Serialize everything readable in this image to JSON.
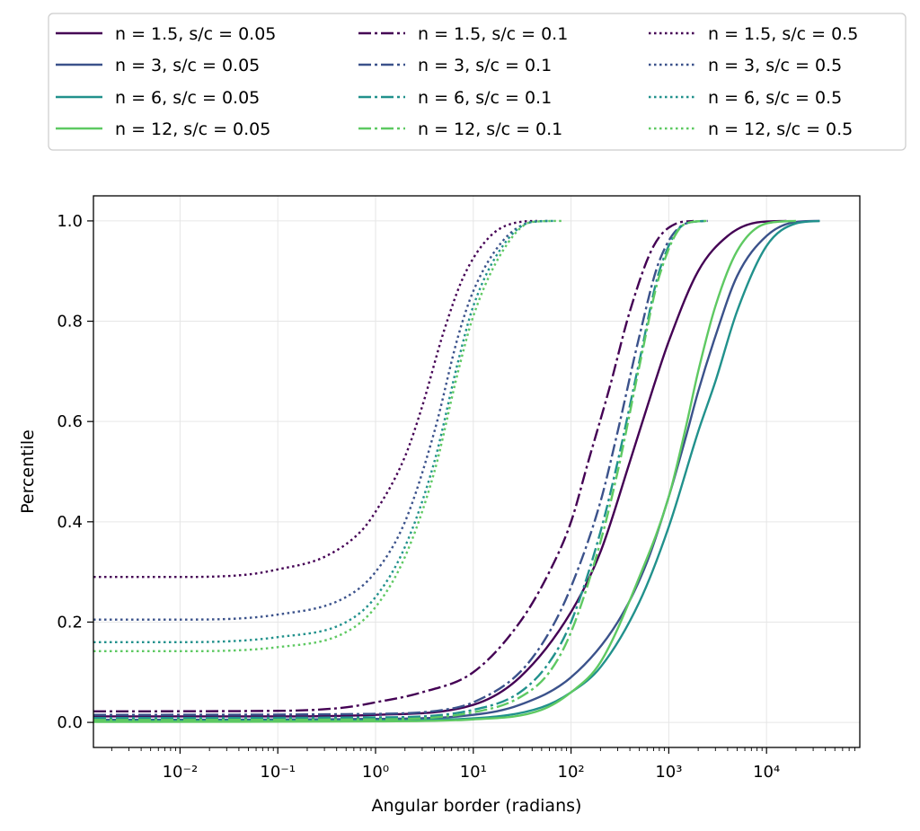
{
  "chart_data": {
    "type": "line",
    "title": "",
    "xlabel": "Angular border (radians)",
    "ylabel": "Percentile",
    "xscale": "log",
    "xlim": [
      0.0013,
      90000
    ],
    "ylim": [
      -0.05,
      1.05
    ],
    "x_tick_labels": [
      "10^-2",
      "10^-1",
      "10^0",
      "10^1",
      "10^2",
      "10^3",
      "10^4"
    ],
    "y_ticks": [
      "0.0",
      "0.2",
      "0.4",
      "0.6",
      "0.8",
      "1.0"
    ],
    "grid": true,
    "legend_placement": "above plot, 3 columns",
    "series": [
      {
        "name": "n = 1.5, s/c = 0.05",
        "color": "#440154",
        "style": "solid",
        "points": [
          [
            0.0013,
            0.012
          ],
          [
            0.01,
            0.012
          ],
          [
            0.1,
            0.012
          ],
          [
            1,
            0.015
          ],
          [
            10,
            0.035
          ],
          [
            30,
            0.09
          ],
          [
            100,
            0.22
          ],
          [
            200,
            0.34
          ],
          [
            400,
            0.52
          ],
          [
            700,
            0.67
          ],
          [
            1000,
            0.76
          ],
          [
            2000,
            0.9
          ],
          [
            4000,
            0.97
          ],
          [
            8000,
            0.997
          ],
          [
            16000,
            1.0
          ]
        ]
      },
      {
        "name": "n = 3, s/c = 0.05",
        "color": "#3b528b",
        "style": "solid",
        "points": [
          [
            0.0013,
            0.005
          ],
          [
            1,
            0.007
          ],
          [
            10,
            0.015
          ],
          [
            30,
            0.035
          ],
          [
            100,
            0.09
          ],
          [
            300,
            0.2
          ],
          [
            600,
            0.32
          ],
          [
            1000,
            0.45
          ],
          [
            1500,
            0.57
          ],
          [
            2000,
            0.66
          ],
          [
            3000,
            0.77
          ],
          [
            5000,
            0.89
          ],
          [
            10000,
            0.97
          ],
          [
            20000,
            0.998
          ],
          [
            35000,
            1.0
          ]
        ]
      },
      {
        "name": "n = 6, s/c = 0.05",
        "color": "#21918c",
        "style": "solid",
        "points": [
          [
            0.0013,
            0.003
          ],
          [
            1,
            0.004
          ],
          [
            10,
            0.008
          ],
          [
            50,
            0.03
          ],
          [
            100,
            0.06
          ],
          [
            200,
            0.11
          ],
          [
            500,
            0.24
          ],
          [
            1000,
            0.39
          ],
          [
            2000,
            0.58
          ],
          [
            3000,
            0.68
          ],
          [
            5000,
            0.82
          ],
          [
            10000,
            0.95
          ],
          [
            20000,
            0.995
          ],
          [
            35000,
            1.0
          ]
        ]
      },
      {
        "name": "n = 12, s/c = 0.05",
        "color": "#5ec962",
        "style": "solid",
        "points": [
          [
            0.0013,
            0.001
          ],
          [
            1,
            0.002
          ],
          [
            10,
            0.006
          ],
          [
            50,
            0.025
          ],
          [
            100,
            0.06
          ],
          [
            200,
            0.12
          ],
          [
            500,
            0.29
          ],
          [
            1000,
            0.45
          ],
          [
            1500,
            0.59
          ],
          [
            2000,
            0.7
          ],
          [
            3000,
            0.83
          ],
          [
            5000,
            0.94
          ],
          [
            10000,
            0.995
          ],
          [
            20000,
            1.0
          ]
        ]
      },
      {
        "name": "n = 1.5, s/c = 0.1",
        "color": "#440154",
        "style": "dashdot",
        "points": [
          [
            0.0013,
            0.022
          ],
          [
            0.1,
            0.023
          ],
          [
            0.5,
            0.03
          ],
          [
            1,
            0.04
          ],
          [
            3,
            0.06
          ],
          [
            10,
            0.1
          ],
          [
            30,
            0.2
          ],
          [
            60,
            0.3
          ],
          [
            100,
            0.4
          ],
          [
            150,
            0.52
          ],
          [
            250,
            0.67
          ],
          [
            400,
            0.82
          ],
          [
            700,
            0.95
          ],
          [
            1200,
            0.995
          ],
          [
            1800,
            1.0
          ]
        ]
      },
      {
        "name": "n = 3, s/c = 0.1",
        "color": "#3b528b",
        "style": "dashdot",
        "points": [
          [
            0.0013,
            0.015
          ],
          [
            1,
            0.017
          ],
          [
            5,
            0.025
          ],
          [
            10,
            0.04
          ],
          [
            30,
            0.1
          ],
          [
            60,
            0.18
          ],
          [
            100,
            0.27
          ],
          [
            200,
            0.44
          ],
          [
            300,
            0.58
          ],
          [
            500,
            0.77
          ],
          [
            800,
            0.92
          ],
          [
            1500,
            0.995
          ],
          [
            2500,
            1.0
          ]
        ]
      },
      {
        "name": "n = 6, s/c = 0.1",
        "color": "#21918c",
        "style": "dashdot",
        "points": [
          [
            0.0013,
            0.009
          ],
          [
            1,
            0.01
          ],
          [
            10,
            0.025
          ],
          [
            30,
            0.06
          ],
          [
            60,
            0.12
          ],
          [
            100,
            0.2
          ],
          [
            200,
            0.38
          ],
          [
            300,
            0.52
          ],
          [
            500,
            0.72
          ],
          [
            800,
            0.9
          ],
          [
            1500,
            0.995
          ],
          [
            2500,
            1.0
          ]
        ]
      },
      {
        "name": "n = 12, s/c = 0.1",
        "color": "#5ec962",
        "style": "dashdot",
        "points": [
          [
            0.0013,
            0.005
          ],
          [
            1,
            0.006
          ],
          [
            10,
            0.02
          ],
          [
            30,
            0.05
          ],
          [
            60,
            0.1
          ],
          [
            100,
            0.18
          ],
          [
            200,
            0.36
          ],
          [
            300,
            0.5
          ],
          [
            500,
            0.71
          ],
          [
            800,
            0.89
          ],
          [
            1500,
            0.995
          ],
          [
            2500,
            1.0
          ]
        ]
      },
      {
        "name": "n = 1.5, s/c = 0.5",
        "color": "#440154",
        "style": "dotted",
        "points": [
          [
            0.0013,
            0.29
          ],
          [
            0.01,
            0.29
          ],
          [
            0.05,
            0.295
          ],
          [
            0.1,
            0.305
          ],
          [
            0.3,
            0.33
          ],
          [
            0.7,
            0.38
          ],
          [
            1,
            0.42
          ],
          [
            2,
            0.53
          ],
          [
            3,
            0.63
          ],
          [
            5,
            0.78
          ],
          [
            8,
            0.89
          ],
          [
            15,
            0.97
          ],
          [
            30,
            0.998
          ],
          [
            45,
            1.0
          ]
        ]
      },
      {
        "name": "n = 3, s/c = 0.5",
        "color": "#3b528b",
        "style": "dotted",
        "points": [
          [
            0.0013,
            0.205
          ],
          [
            0.01,
            0.205
          ],
          [
            0.1,
            0.215
          ],
          [
            0.5,
            0.25
          ],
          [
            1,
            0.3
          ],
          [
            2,
            0.4
          ],
          [
            4,
            0.58
          ],
          [
            7,
            0.77
          ],
          [
            10,
            0.86
          ],
          [
            20,
            0.96
          ],
          [
            40,
            0.998
          ],
          [
            60,
            1.0
          ]
        ]
      },
      {
        "name": "n = 6, s/c = 0.5",
        "color": "#21918c",
        "style": "dotted",
        "points": [
          [
            0.0013,
            0.16
          ],
          [
            0.01,
            0.16
          ],
          [
            0.1,
            0.17
          ],
          [
            0.5,
            0.2
          ],
          [
            1,
            0.25
          ],
          [
            2,
            0.35
          ],
          [
            4,
            0.52
          ],
          [
            7,
            0.72
          ],
          [
            10,
            0.83
          ],
          [
            20,
            0.95
          ],
          [
            40,
            0.998
          ],
          [
            70,
            1.0
          ]
        ]
      },
      {
        "name": "n = 12, s/c = 0.5",
        "color": "#5ec962",
        "style": "dotted",
        "points": [
          [
            0.0013,
            0.142
          ],
          [
            0.01,
            0.142
          ],
          [
            0.1,
            0.15
          ],
          [
            0.5,
            0.18
          ],
          [
            1,
            0.23
          ],
          [
            2,
            0.33
          ],
          [
            4,
            0.5
          ],
          [
            7,
            0.7
          ],
          [
            10,
            0.81
          ],
          [
            20,
            0.94
          ],
          [
            40,
            0.998
          ],
          [
            80,
            1.0
          ]
        ]
      }
    ]
  }
}
